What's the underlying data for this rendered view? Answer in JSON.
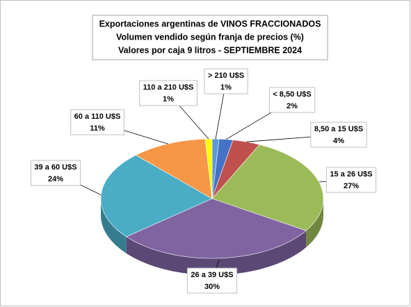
{
  "chart_data": {
    "type": "pie3d",
    "title": "Exportaciones argentinas de VINOS FRACCIONADOS",
    "subtitle": [
      "Volumen vendido según franja de precios (%)",
      "Valores por caja  9 litros -  SEPTIEMBRE 2024"
    ],
    "categories": [
      "> 210 U$S",
      "< 8,50 U$S",
      "8,50 a 15 U$S",
      "15 a 26 U$S",
      "26 a 39 U$S",
      "39 a 60 U$S",
      "60 a 110 U$S",
      "110 a 210 U$S"
    ],
    "values": [
      1,
      2,
      4,
      27,
      30,
      24,
      11,
      1
    ],
    "value_labels": [
      "1%",
      "2%",
      "4%",
      "27%",
      "30%",
      "24%",
      "11%",
      "1%"
    ],
    "colors": [
      "#5b9bd5",
      "#4472c4",
      "#c0504d",
      "#9bbb59",
      "#8064a2",
      "#4bacc6",
      "#f79646",
      "#ffff00"
    ]
  }
}
